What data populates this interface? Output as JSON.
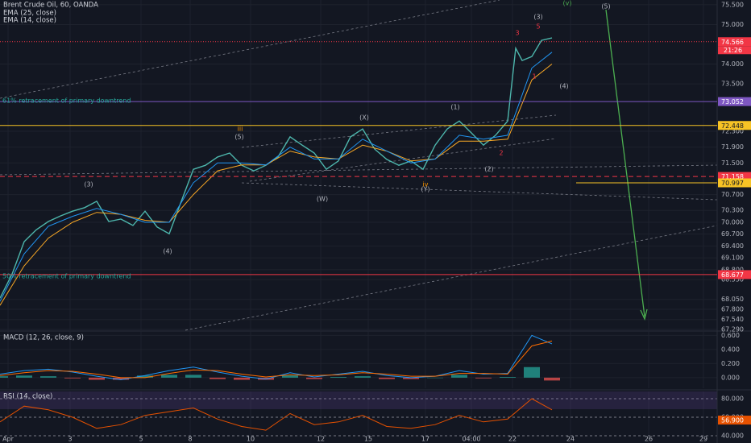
{
  "chart_data": [
    {
      "type": "line",
      "title": "Brent Crude Oil, 60, OANDA",
      "xlim": [
        0,
        178
      ],
      "xticks": [
        {
          "value": 2,
          "label": "Apr"
        },
        {
          "value": 17.4,
          "label": "3"
        },
        {
          "value": 35,
          "label": "5"
        },
        {
          "value": 47.2,
          "label": "8"
        },
        {
          "value": 62.2,
          "label": "10"
        },
        {
          "value": 79.6,
          "label": "12"
        },
        {
          "value": 91.4,
          "label": "15"
        },
        {
          "value": 105.6,
          "label": "17"
        },
        {
          "value": 117,
          "label": "04:00"
        },
        {
          "value": 127.2,
          "label": "22"
        },
        {
          "value": 141.6,
          "label": "24"
        },
        {
          "value": 161,
          "label": "26"
        },
        {
          "value": 174.6,
          "label": "29"
        }
      ],
      "ylim": [
        67.27,
        75.62
      ],
      "yticks": [
        {
          "value": 75.5,
          "label": "75.500"
        },
        {
          "value": 75.0,
          "label": "75.000"
        },
        {
          "value": 74.0,
          "label": "74.000"
        },
        {
          "value": 73.5,
          "label": "73.500"
        },
        {
          "value": 72.3,
          "label": "72.300"
        },
        {
          "value": 71.9,
          "label": "71.900"
        },
        {
          "value": 71.5,
          "label": "71.500"
        },
        {
          "value": 70.7,
          "label": "70.700"
        },
        {
          "value": 70.3,
          "label": "70.300"
        },
        {
          "value": 70.0,
          "label": "70.000"
        },
        {
          "value": 69.7,
          "label": "69.700"
        },
        {
          "value": 69.4,
          "label": "69.400"
        },
        {
          "value": 69.1,
          "label": "69.100"
        },
        {
          "value": 68.8,
          "label": "68.800"
        },
        {
          "value": 68.55,
          "label": "68.550"
        },
        {
          "value": 68.05,
          "label": "68.050"
        },
        {
          "value": 67.8,
          "label": "67.800"
        },
        {
          "value": 67.54,
          "label": "67.540"
        },
        {
          "value": 67.29,
          "label": "67.290"
        }
      ],
      "grid": true,
      "series": [
        {
          "color": "#4db6ac",
          "x": [
            0,
            3,
            6,
            9,
            12,
            15,
            18,
            21,
            24,
            27,
            30,
            33,
            36,
            39,
            42,
            45,
            48,
            51,
            54,
            57,
            60,
            63,
            66,
            69,
            72,
            75,
            78,
            81,
            84,
            87,
            90,
            93,
            96,
            99,
            102,
            105,
            108,
            111,
            114,
            117,
            120,
            123,
            126,
            128,
            129.6,
            132,
            134.4,
            137
          ],
          "values": [
            68.08,
            68.69,
            69.51,
            69.81,
            70.02,
            70.16,
            70.28,
            70.37,
            70.53,
            70.02,
            70.08,
            69.92,
            70.28,
            69.88,
            69.71,
            70.53,
            71.34,
            71.44,
            71.65,
            71.75,
            71.44,
            71.3,
            71.44,
            71.65,
            72.16,
            71.95,
            71.75,
            71.34,
            71.55,
            72.16,
            72.36,
            71.85,
            71.59,
            71.44,
            71.55,
            71.34,
            71.95,
            72.36,
            72.56,
            72.26,
            71.95,
            72.2,
            72.56,
            74.4,
            74.09,
            74.19,
            74.6,
            74.66
          ]
        },
        {
          "name": "EMA (25, close)",
          "color": "#f9a825",
          "x": [
            0,
            6,
            12,
            18,
            24,
            30,
            36,
            42,
            48,
            54,
            60,
            66,
            72,
            78,
            84,
            90,
            96,
            102,
            108,
            114,
            120,
            126,
            132,
            137
          ],
          "values": [
            67.9,
            68.9,
            69.6,
            70.0,
            70.25,
            70.2,
            70.05,
            70.0,
            70.7,
            71.3,
            71.45,
            71.45,
            71.8,
            71.65,
            71.6,
            71.95,
            71.8,
            71.55,
            71.6,
            72.05,
            72.05,
            72.1,
            73.6,
            74.0
          ]
        },
        {
          "name": "EMA (14, close)",
          "color": "#2196f3",
          "x": [
            0,
            6,
            12,
            18,
            24,
            30,
            36,
            42,
            48,
            54,
            60,
            66,
            72,
            78,
            84,
            90,
            96,
            102,
            108,
            114,
            120,
            126,
            132,
            137
          ],
          "values": [
            68.0,
            69.2,
            69.9,
            70.15,
            70.35,
            70.2,
            70.0,
            70.0,
            71.0,
            71.5,
            71.5,
            71.45,
            71.9,
            71.6,
            71.6,
            72.1,
            71.8,
            71.5,
            71.6,
            72.2,
            72.1,
            72.2,
            73.9,
            74.3
          ]
        }
      ],
      "price_levels": [
        {
          "value": 74.566,
          "color": "#f23645",
          "style": "dotted"
        },
        {
          "value": 73.052,
          "color": "#7e57c2",
          "style": "solid"
        },
        {
          "value": 72.448,
          "color": "#f7c325",
          "style": "solid"
        },
        {
          "value": 71.158,
          "color": "#f23645",
          "style": "dashed"
        },
        {
          "value": 70.997,
          "color": "#f7c325",
          "style": "solid"
        },
        {
          "value": 68.677,
          "color": "#f23645",
          "style": "solid"
        }
      ],
      "countdown": "21:26",
      "annotations": [
        "61% retracement of primary downtrend",
        "50% retracement of primary downtrend",
        "(3)",
        "(4)",
        "(5)",
        "iii",
        "(W)",
        "(X)",
        "(Y)",
        "iv",
        "(1)",
        "(2)",
        "(3)",
        "(4)",
        "(v)",
        "(5)",
        "3",
        "5",
        "1",
        "2"
      ]
    },
    {
      "type": "line",
      "title": "MACD (12, 26, close, 9)",
      "ylim": [
        -0.15,
        0.65
      ],
      "yticks": [
        {
          "value": 0.6,
          "label": "0.600"
        },
        {
          "value": 0.4,
          "label": "0.400"
        },
        {
          "value": 0.2,
          "label": "0.200"
        },
        {
          "value": 0.0,
          "label": "0.000"
        }
      ],
      "grid": true,
      "series": [
        {
          "style": "histogram",
          "color": "#26a69a",
          "down_color": "#ef5350",
          "x": [
            0,
            6,
            12,
            18,
            24,
            30,
            36,
            42,
            48,
            54,
            60,
            66,
            72,
            78,
            84,
            90,
            96,
            102,
            108,
            114,
            120,
            126,
            132,
            137
          ],
          "values": [
            0.02,
            0.03,
            0.02,
            -0.01,
            -0.03,
            -0.03,
            0.03,
            0.04,
            0.04,
            -0.02,
            -0.03,
            -0.03,
            0.03,
            -0.02,
            0.01,
            0.02,
            -0.02,
            -0.02,
            0.0,
            0.04,
            -0.01,
            0.01,
            0.15,
            -0.04
          ]
        },
        {
          "color": "#2196f3",
          "x": [
            0,
            6,
            12,
            18,
            24,
            30,
            36,
            42,
            48,
            54,
            60,
            66,
            72,
            78,
            84,
            90,
            96,
            102,
            108,
            114,
            120,
            126,
            132,
            137
          ],
          "values": [
            0.05,
            0.1,
            0.12,
            0.08,
            0.02,
            -0.03,
            0.03,
            0.1,
            0.15,
            0.08,
            0.02,
            -0.02,
            0.07,
            0.01,
            0.05,
            0.09,
            0.03,
            0.0,
            0.02,
            0.1,
            0.05,
            0.06,
            0.6,
            0.48
          ]
        },
        {
          "color": "#ff6d00",
          "x": [
            0,
            6,
            12,
            18,
            24,
            30,
            36,
            42,
            48,
            54,
            60,
            66,
            72,
            78,
            84,
            90,
            96,
            102,
            108,
            114,
            120,
            126,
            132,
            137
          ],
          "values": [
            0.03,
            0.07,
            0.1,
            0.09,
            0.05,
            0.0,
            0.0,
            0.06,
            0.11,
            0.1,
            0.05,
            0.01,
            0.04,
            0.03,
            0.04,
            0.07,
            0.05,
            0.02,
            0.02,
            0.06,
            0.06,
            0.05,
            0.45,
            0.52
          ]
        }
      ]
    },
    {
      "type": "line",
      "title": "RSI (14, close)",
      "ylim": [
        32.2,
        87.8
      ],
      "yticks": [
        {
          "value": 80,
          "label": "80.000"
        },
        {
          "value": 60,
          "label": "60.000"
        },
        {
          "value": 40,
          "label": "40.000"
        }
      ],
      "grid": true,
      "series": [
        {
          "color": "#e65100",
          "x": [
            0,
            6,
            12,
            18,
            24,
            30,
            36,
            42,
            48,
            54,
            60,
            66,
            72,
            78,
            84,
            90,
            96,
            102,
            108,
            114,
            120,
            126,
            132,
            137
          ],
          "values": [
            55,
            72,
            68,
            60,
            48,
            52,
            62,
            66,
            70,
            58,
            50,
            46,
            64,
            52,
            55,
            62,
            50,
            48,
            52,
            62,
            55,
            58,
            80,
            68
          ]
        }
      ],
      "current": {
        "value": 56.9,
        "label": "56.900"
      }
    }
  ]
}
